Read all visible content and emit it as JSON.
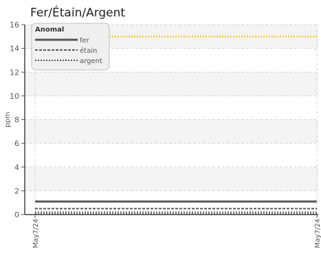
{
  "chart_data": {
    "type": "line",
    "title": "Fer/Étain/Argent",
    "ylabel": "ppm",
    "xlabel": "",
    "ylim": [
      0,
      16
    ],
    "yticks": [
      "0",
      "2",
      "4",
      "6",
      "8",
      "10",
      "12",
      "14",
      "16"
    ],
    "x": [
      "May7/24",
      "May7/24"
    ],
    "grid": true,
    "legend": {
      "title": "Anomal",
      "placement": "top-left",
      "entries": [
        "fer",
        "étain",
        "argent"
      ]
    },
    "series": [
      {
        "name": "fer",
        "values": [
          1.1,
          1.1
        ],
        "color": "#555555",
        "style": "solid"
      },
      {
        "name": "étain",
        "values": [
          0.5,
          0.5
        ],
        "color": "#555555",
        "style": "dashed"
      },
      {
        "name": "argent",
        "values": [
          0.2,
          0.2
        ],
        "color": "#555555",
        "style": "dotted"
      }
    ],
    "reference_lines": [
      {
        "value": 15,
        "color": "#f5c000",
        "style": "dotted"
      },
      {
        "value": 0.05,
        "color": "#555555",
        "style": "dotted"
      }
    ]
  }
}
